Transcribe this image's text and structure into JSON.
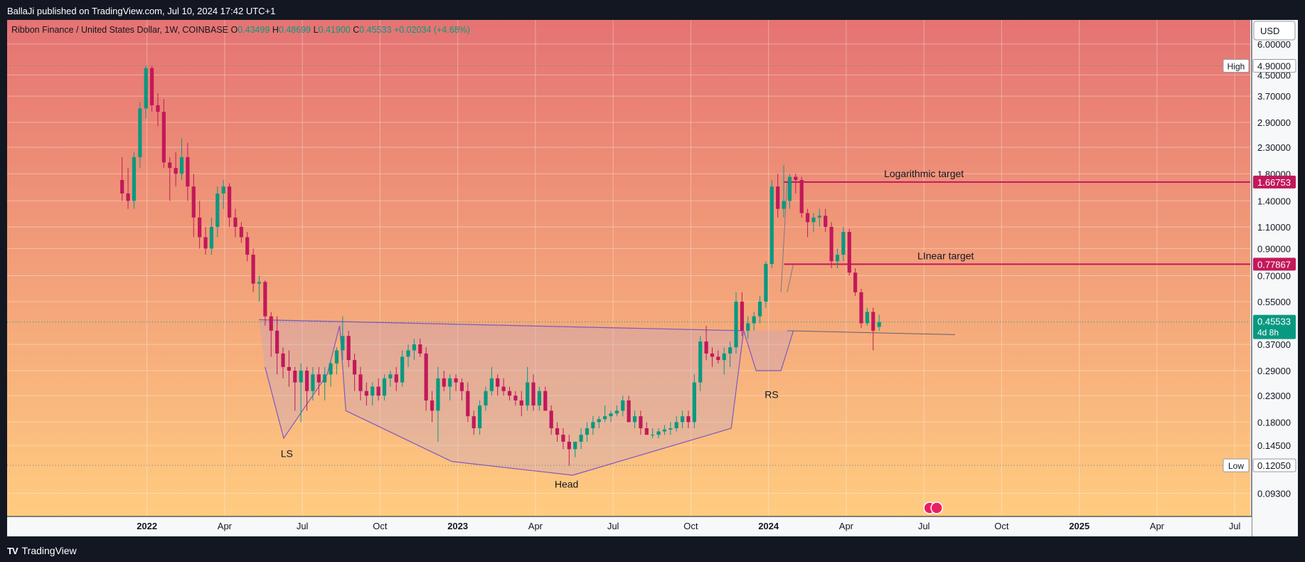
{
  "publisher": "BallaJi published on TradingView.com, Jul 10, 2024 17:42 UTC+1",
  "branding": {
    "logo_text": "TradingView"
  },
  "legend": {
    "symbol": "Ribbon Finance / United States Dollar, 1W, COINBASE",
    "o_label": "O",
    "o_value": "0.43499",
    "h_label": "H",
    "h_value": "0.48699",
    "l_label": "L",
    "l_value": "0.41900",
    "c_label": "C",
    "c_value": "0.45533",
    "change": "+0.02034 (+4.68%)"
  },
  "currency_button": "USD",
  "colors": {
    "up": "#089981",
    "down": "#c2185b",
    "pattern": "#7e57c2",
    "target": "#c2185b",
    "grid": "#ffffff"
  },
  "chart_data": {
    "type": "candlestick",
    "title": "Ribbon Finance / United States Dollar, 1W, COINBASE",
    "scale": "logarithmic",
    "ylim": [
      0.075,
      7.5
    ],
    "xlim": [
      2021.55,
      2025.55
    ],
    "y_ticks": [
      "6.00000",
      "4.50000",
      "3.70000",
      "2.90000",
      "2.30000",
      "1.80000",
      "1.40000",
      "1.10000",
      "0.90000",
      "0.70000",
      "0.55000",
      "0.37000",
      "0.29000",
      "0.23000",
      "0.18000",
      "0.14500",
      "0.09300"
    ],
    "x_ticks": [
      {
        "label": "2022",
        "t": 2022.0,
        "bold": true
      },
      {
        "label": "Apr",
        "t": 2022.25
      },
      {
        "label": "Jul",
        "t": 2022.5
      },
      {
        "label": "Oct",
        "t": 2022.75
      },
      {
        "label": "2023",
        "t": 2023.0,
        "bold": true
      },
      {
        "label": "Apr",
        "t": 2023.25
      },
      {
        "label": "Jul",
        "t": 2023.5
      },
      {
        "label": "Oct",
        "t": 2023.75
      },
      {
        "label": "2024",
        "t": 2024.0,
        "bold": true
      },
      {
        "label": "Apr",
        "t": 2024.25
      },
      {
        "label": "Jul",
        "t": 2024.5
      },
      {
        "label": "Oct",
        "t": 2024.75
      },
      {
        "label": "2025",
        "t": 2025.0,
        "bold": true
      },
      {
        "label": "Apr",
        "t": 2025.25
      },
      {
        "label": "Jul",
        "t": 2025.5
      }
    ],
    "candles_start": 2021.92,
    "candle_interval_years": 0.01918,
    "candles": [
      [
        1.7,
        2.1,
        1.4,
        1.5
      ],
      [
        1.5,
        1.9,
        1.3,
        1.4
      ],
      [
        1.4,
        2.2,
        1.3,
        2.1
      ],
      [
        2.1,
        3.5,
        1.9,
        3.3
      ],
      [
        3.3,
        4.9,
        3.0,
        4.8
      ],
      [
        4.8,
        4.9,
        3.2,
        3.4
      ],
      [
        3.4,
        3.8,
        2.8,
        3.2
      ],
      [
        3.2,
        3.6,
        1.9,
        2.0
      ],
      [
        2.0,
        2.1,
        1.4,
        1.9
      ],
      [
        1.9,
        2.2,
        1.6,
        1.8
      ],
      [
        1.8,
        2.5,
        1.7,
        2.1
      ],
      [
        2.1,
        2.4,
        1.4,
        1.6
      ],
      [
        1.6,
        1.8,
        1.0,
        1.2
      ],
      [
        1.2,
        1.4,
        0.9,
        1.0
      ],
      [
        1.0,
        1.1,
        0.85,
        0.9
      ],
      [
        0.9,
        1.2,
        0.85,
        1.1
      ],
      [
        1.1,
        1.6,
        1.0,
        1.5
      ],
      [
        1.5,
        1.7,
        1.3,
        1.6
      ],
      [
        1.6,
        1.65,
        1.1,
        1.2
      ],
      [
        1.2,
        1.3,
        1.0,
        1.1
      ],
      [
        1.1,
        1.15,
        0.95,
        1.0
      ],
      [
        1.0,
        1.05,
        0.8,
        0.85
      ],
      [
        0.85,
        0.9,
        0.6,
        0.65
      ],
      [
        0.65,
        0.7,
        0.55,
        0.66
      ],
      [
        0.66,
        0.67,
        0.44,
        0.48
      ],
      [
        0.48,
        0.5,
        0.33,
        0.42
      ],
      [
        0.42,
        0.48,
        0.28,
        0.34
      ],
      [
        0.34,
        0.36,
        0.27,
        0.3
      ],
      [
        0.3,
        0.35,
        0.25,
        0.29
      ],
      [
        0.29,
        0.3,
        0.2,
        0.26
      ],
      [
        0.26,
        0.31,
        0.18,
        0.29
      ],
      [
        0.29,
        0.3,
        0.2,
        0.24
      ],
      [
        0.24,
        0.3,
        0.22,
        0.28
      ],
      [
        0.28,
        0.3,
        0.23,
        0.26
      ],
      [
        0.26,
        0.3,
        0.22,
        0.28
      ],
      [
        0.28,
        0.32,
        0.25,
        0.31
      ],
      [
        0.31,
        0.36,
        0.28,
        0.35
      ],
      [
        0.35,
        0.48,
        0.32,
        0.4
      ],
      [
        0.4,
        0.42,
        0.3,
        0.32
      ],
      [
        0.32,
        0.34,
        0.24,
        0.28
      ],
      [
        0.28,
        0.3,
        0.22,
        0.24
      ],
      [
        0.24,
        0.26,
        0.21,
        0.23
      ],
      [
        0.23,
        0.26,
        0.21,
        0.25
      ],
      [
        0.25,
        0.27,
        0.22,
        0.23
      ],
      [
        0.23,
        0.28,
        0.22,
        0.27
      ],
      [
        0.27,
        0.29,
        0.25,
        0.28
      ],
      [
        0.28,
        0.3,
        0.24,
        0.26
      ],
      [
        0.26,
        0.35,
        0.25,
        0.33
      ],
      [
        0.33,
        0.37,
        0.3,
        0.35
      ],
      [
        0.35,
        0.39,
        0.32,
        0.37
      ],
      [
        0.37,
        0.39,
        0.33,
        0.34
      ],
      [
        0.34,
        0.36,
        0.2,
        0.22
      ],
      [
        0.22,
        0.24,
        0.18,
        0.2
      ],
      [
        0.2,
        0.3,
        0.15,
        0.27
      ],
      [
        0.27,
        0.29,
        0.24,
        0.25
      ],
      [
        0.25,
        0.28,
        0.22,
        0.27
      ],
      [
        0.27,
        0.28,
        0.24,
        0.26
      ],
      [
        0.26,
        0.27,
        0.22,
        0.24
      ],
      [
        0.24,
        0.26,
        0.18,
        0.19
      ],
      [
        0.19,
        0.2,
        0.16,
        0.17
      ],
      [
        0.17,
        0.22,
        0.16,
        0.21
      ],
      [
        0.21,
        0.25,
        0.2,
        0.24
      ],
      [
        0.24,
        0.3,
        0.23,
        0.27
      ],
      [
        0.27,
        0.28,
        0.23,
        0.25
      ],
      [
        0.25,
        0.27,
        0.23,
        0.24
      ],
      [
        0.24,
        0.25,
        0.22,
        0.23
      ],
      [
        0.23,
        0.24,
        0.21,
        0.22
      ],
      [
        0.22,
        0.24,
        0.19,
        0.21
      ],
      [
        0.21,
        0.3,
        0.2,
        0.26
      ],
      [
        0.26,
        0.28,
        0.2,
        0.21
      ],
      [
        0.21,
        0.25,
        0.2,
        0.24
      ],
      [
        0.24,
        0.25,
        0.2,
        0.2
      ],
      [
        0.2,
        0.21,
        0.16,
        0.17
      ],
      [
        0.17,
        0.18,
        0.15,
        0.16
      ],
      [
        0.16,
        0.17,
        0.14,
        0.15
      ],
      [
        0.15,
        0.16,
        0.12,
        0.14
      ],
      [
        0.14,
        0.15,
        0.13,
        0.15
      ],
      [
        0.15,
        0.17,
        0.14,
        0.16
      ],
      [
        0.16,
        0.18,
        0.15,
        0.17
      ],
      [
        0.17,
        0.19,
        0.16,
        0.18
      ],
      [
        0.18,
        0.19,
        0.17,
        0.185
      ],
      [
        0.185,
        0.21,
        0.18,
        0.19
      ],
      [
        0.19,
        0.2,
        0.18,
        0.195
      ],
      [
        0.195,
        0.21,
        0.19,
        0.2
      ],
      [
        0.2,
        0.23,
        0.19,
        0.22
      ],
      [
        0.22,
        0.23,
        0.18,
        0.18
      ],
      [
        0.18,
        0.2,
        0.17,
        0.19
      ],
      [
        0.19,
        0.2,
        0.16,
        0.17
      ],
      [
        0.17,
        0.18,
        0.16,
        0.16
      ],
      [
        0.16,
        0.17,
        0.155,
        0.16
      ],
      [
        0.16,
        0.17,
        0.155,
        0.165
      ],
      [
        0.165,
        0.175,
        0.16,
        0.168
      ],
      [
        0.168,
        0.18,
        0.16,
        0.17
      ],
      [
        0.17,
        0.19,
        0.165,
        0.18
      ],
      [
        0.18,
        0.2,
        0.17,
        0.19
      ],
      [
        0.19,
        0.2,
        0.17,
        0.18
      ],
      [
        0.18,
        0.28,
        0.17,
        0.26
      ],
      [
        0.26,
        0.4,
        0.24,
        0.38
      ],
      [
        0.38,
        0.44,
        0.32,
        0.34
      ],
      [
        0.34,
        0.36,
        0.3,
        0.33
      ],
      [
        0.33,
        0.35,
        0.31,
        0.32
      ],
      [
        0.32,
        0.36,
        0.28,
        0.34
      ],
      [
        0.34,
        0.38,
        0.3,
        0.36
      ],
      [
        0.36,
        0.6,
        0.34,
        0.55
      ],
      [
        0.55,
        0.6,
        0.4,
        0.42
      ],
      [
        0.42,
        0.48,
        0.39,
        0.45
      ],
      [
        0.45,
        0.5,
        0.42,
        0.48
      ],
      [
        0.48,
        0.58,
        0.45,
        0.55
      ],
      [
        0.55,
        0.8,
        0.52,
        0.78
      ],
      [
        0.78,
        1.7,
        0.75,
        1.6
      ],
      [
        1.6,
        1.8,
        1.2,
        1.3
      ],
      [
        1.3,
        1.95,
        1.2,
        1.4
      ],
      [
        1.4,
        1.8,
        1.3,
        1.75
      ],
      [
        1.75,
        1.8,
        1.5,
        1.7
      ],
      [
        1.7,
        1.75,
        1.2,
        1.25
      ],
      [
        1.25,
        1.3,
        1.0,
        1.15
      ],
      [
        1.15,
        1.25,
        1.05,
        1.2
      ],
      [
        1.2,
        1.3,
        1.1,
        1.22
      ],
      [
        1.22,
        1.3,
        1.05,
        1.1
      ],
      [
        1.1,
        1.15,
        0.75,
        0.8
      ],
      [
        0.8,
        0.9,
        0.75,
        0.85
      ],
      [
        0.85,
        1.1,
        0.8,
        1.05
      ],
      [
        1.05,
        1.08,
        0.7,
        0.72
      ],
      [
        0.72,
        0.75,
        0.58,
        0.6
      ],
      [
        0.6,
        0.62,
        0.43,
        0.45
      ],
      [
        0.45,
        0.52,
        0.44,
        0.5
      ],
      [
        0.5,
        0.52,
        0.35,
        0.42
      ],
      [
        0.435,
        0.487,
        0.419,
        0.455
      ]
    ],
    "pattern": {
      "neckline": [
        [
          2022.36,
          0.465
        ],
        [
          2023.92,
          0.42
        ]
      ],
      "outline": [
        [
          2022.38,
          0.3
        ],
        [
          2022.44,
          0.155
        ],
        [
          2022.58,
          0.28
        ],
        [
          2022.62,
          0.44
        ],
        [
          2022.64,
          0.2
        ],
        [
          2022.98,
          0.125
        ],
        [
          2023.37,
          0.11
        ],
        [
          2023.88,
          0.17
        ],
        [
          2023.92,
          0.42
        ],
        [
          2023.96,
          0.29
        ],
        [
          2024.04,
          0.29
        ],
        [
          2024.08,
          0.42
        ]
      ],
      "labels": [
        {
          "text": "LS",
          "t": 2022.45,
          "v": 0.13
        },
        {
          "text": "Head",
          "t": 2023.35,
          "v": 0.098
        },
        {
          "text": "RS",
          "t": 2024.01,
          "v": 0.225
        }
      ]
    },
    "extension_line": [
      [
        2024.06,
        0.42
      ],
      [
        2024.6,
        0.405
      ]
    ],
    "targets": [
      {
        "label": "Logarithmic target",
        "value": 1.66753,
        "value_label": "1.66753",
        "t_start": 2024.05,
        "t_text": 2024.5
      },
      {
        "label": "LInear target",
        "value": 0.77867,
        "value_label": "0.77867",
        "t_start": 2024.05,
        "t_text": 2024.57
      }
    ],
    "projection_lines": [
      [
        [
          2024.04,
          0.6
        ],
        [
          2024.06,
          1.66753
        ]
      ],
      [
        [
          2024.06,
          0.6
        ],
        [
          2024.08,
          0.77867
        ]
      ]
    ],
    "high": {
      "label": "High",
      "value": 4.9,
      "value_label": "4.90000"
    },
    "low": {
      "label": "Low",
      "value": 0.1205,
      "value_label": "0.12050"
    },
    "current": {
      "value": 0.45533,
      "value_label": "0.45533",
      "countdown": "4d 8h"
    }
  }
}
